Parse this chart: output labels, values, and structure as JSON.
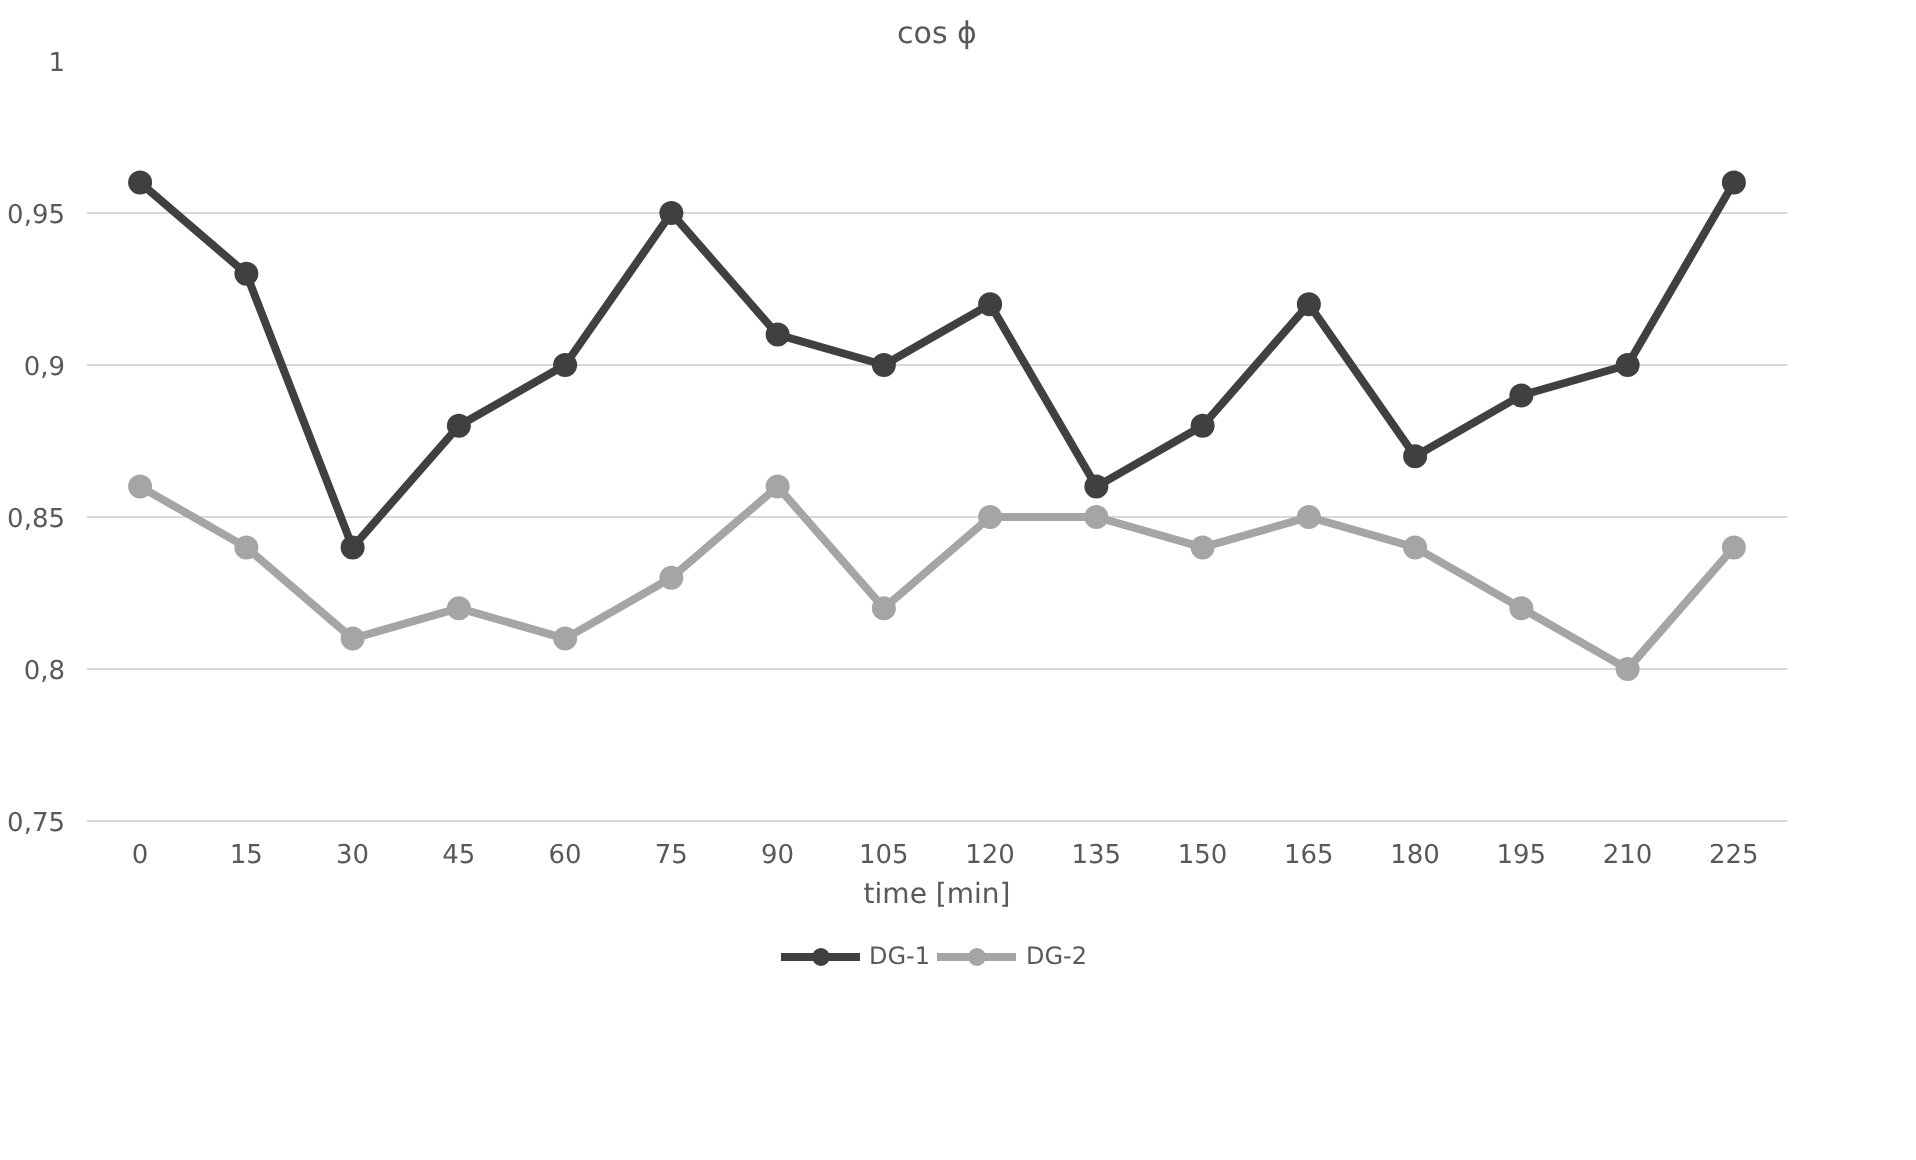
{
  "chart_data": {
    "type": "line",
    "title": "cos ϕ",
    "xlabel": "time [min]",
    "categories": [
      "0",
      "15",
      "30",
      "45",
      "60",
      "75",
      "90",
      "105",
      "120",
      "135",
      "150",
      "165",
      "180",
      "195",
      "210",
      "225"
    ],
    "series": [
      {
        "name": "DG-1",
        "color": "#404040",
        "values": [
          0.96,
          0.93,
          0.84,
          0.88,
          0.9,
          0.95,
          0.91,
          0.9,
          0.92,
          0.86,
          0.88,
          0.92,
          0.87,
          0.89,
          0.9,
          0.96
        ]
      },
      {
        "name": "DG-2",
        "color": "#a5a5a5",
        "values": [
          0.86,
          0.84,
          0.81,
          0.82,
          0.81,
          0.83,
          0.86,
          0.82,
          0.85,
          0.85,
          0.84,
          0.85,
          0.84,
          0.82,
          0.8,
          0.84
        ]
      }
    ],
    "ylim": [
      0.75,
      1
    ],
    "yticks": [
      {
        "value": 0.75,
        "label": "0,75"
      },
      {
        "value": 0.8,
        "label": "0,8"
      },
      {
        "value": 0.85,
        "label": "0,85"
      },
      {
        "value": 0.9,
        "label": "0,9"
      },
      {
        "value": 0.95,
        "label": "0,95"
      },
      1
    ],
    "grid": "y",
    "legend": "bottom",
    "marker": "circle",
    "line_style": "solid"
  }
}
